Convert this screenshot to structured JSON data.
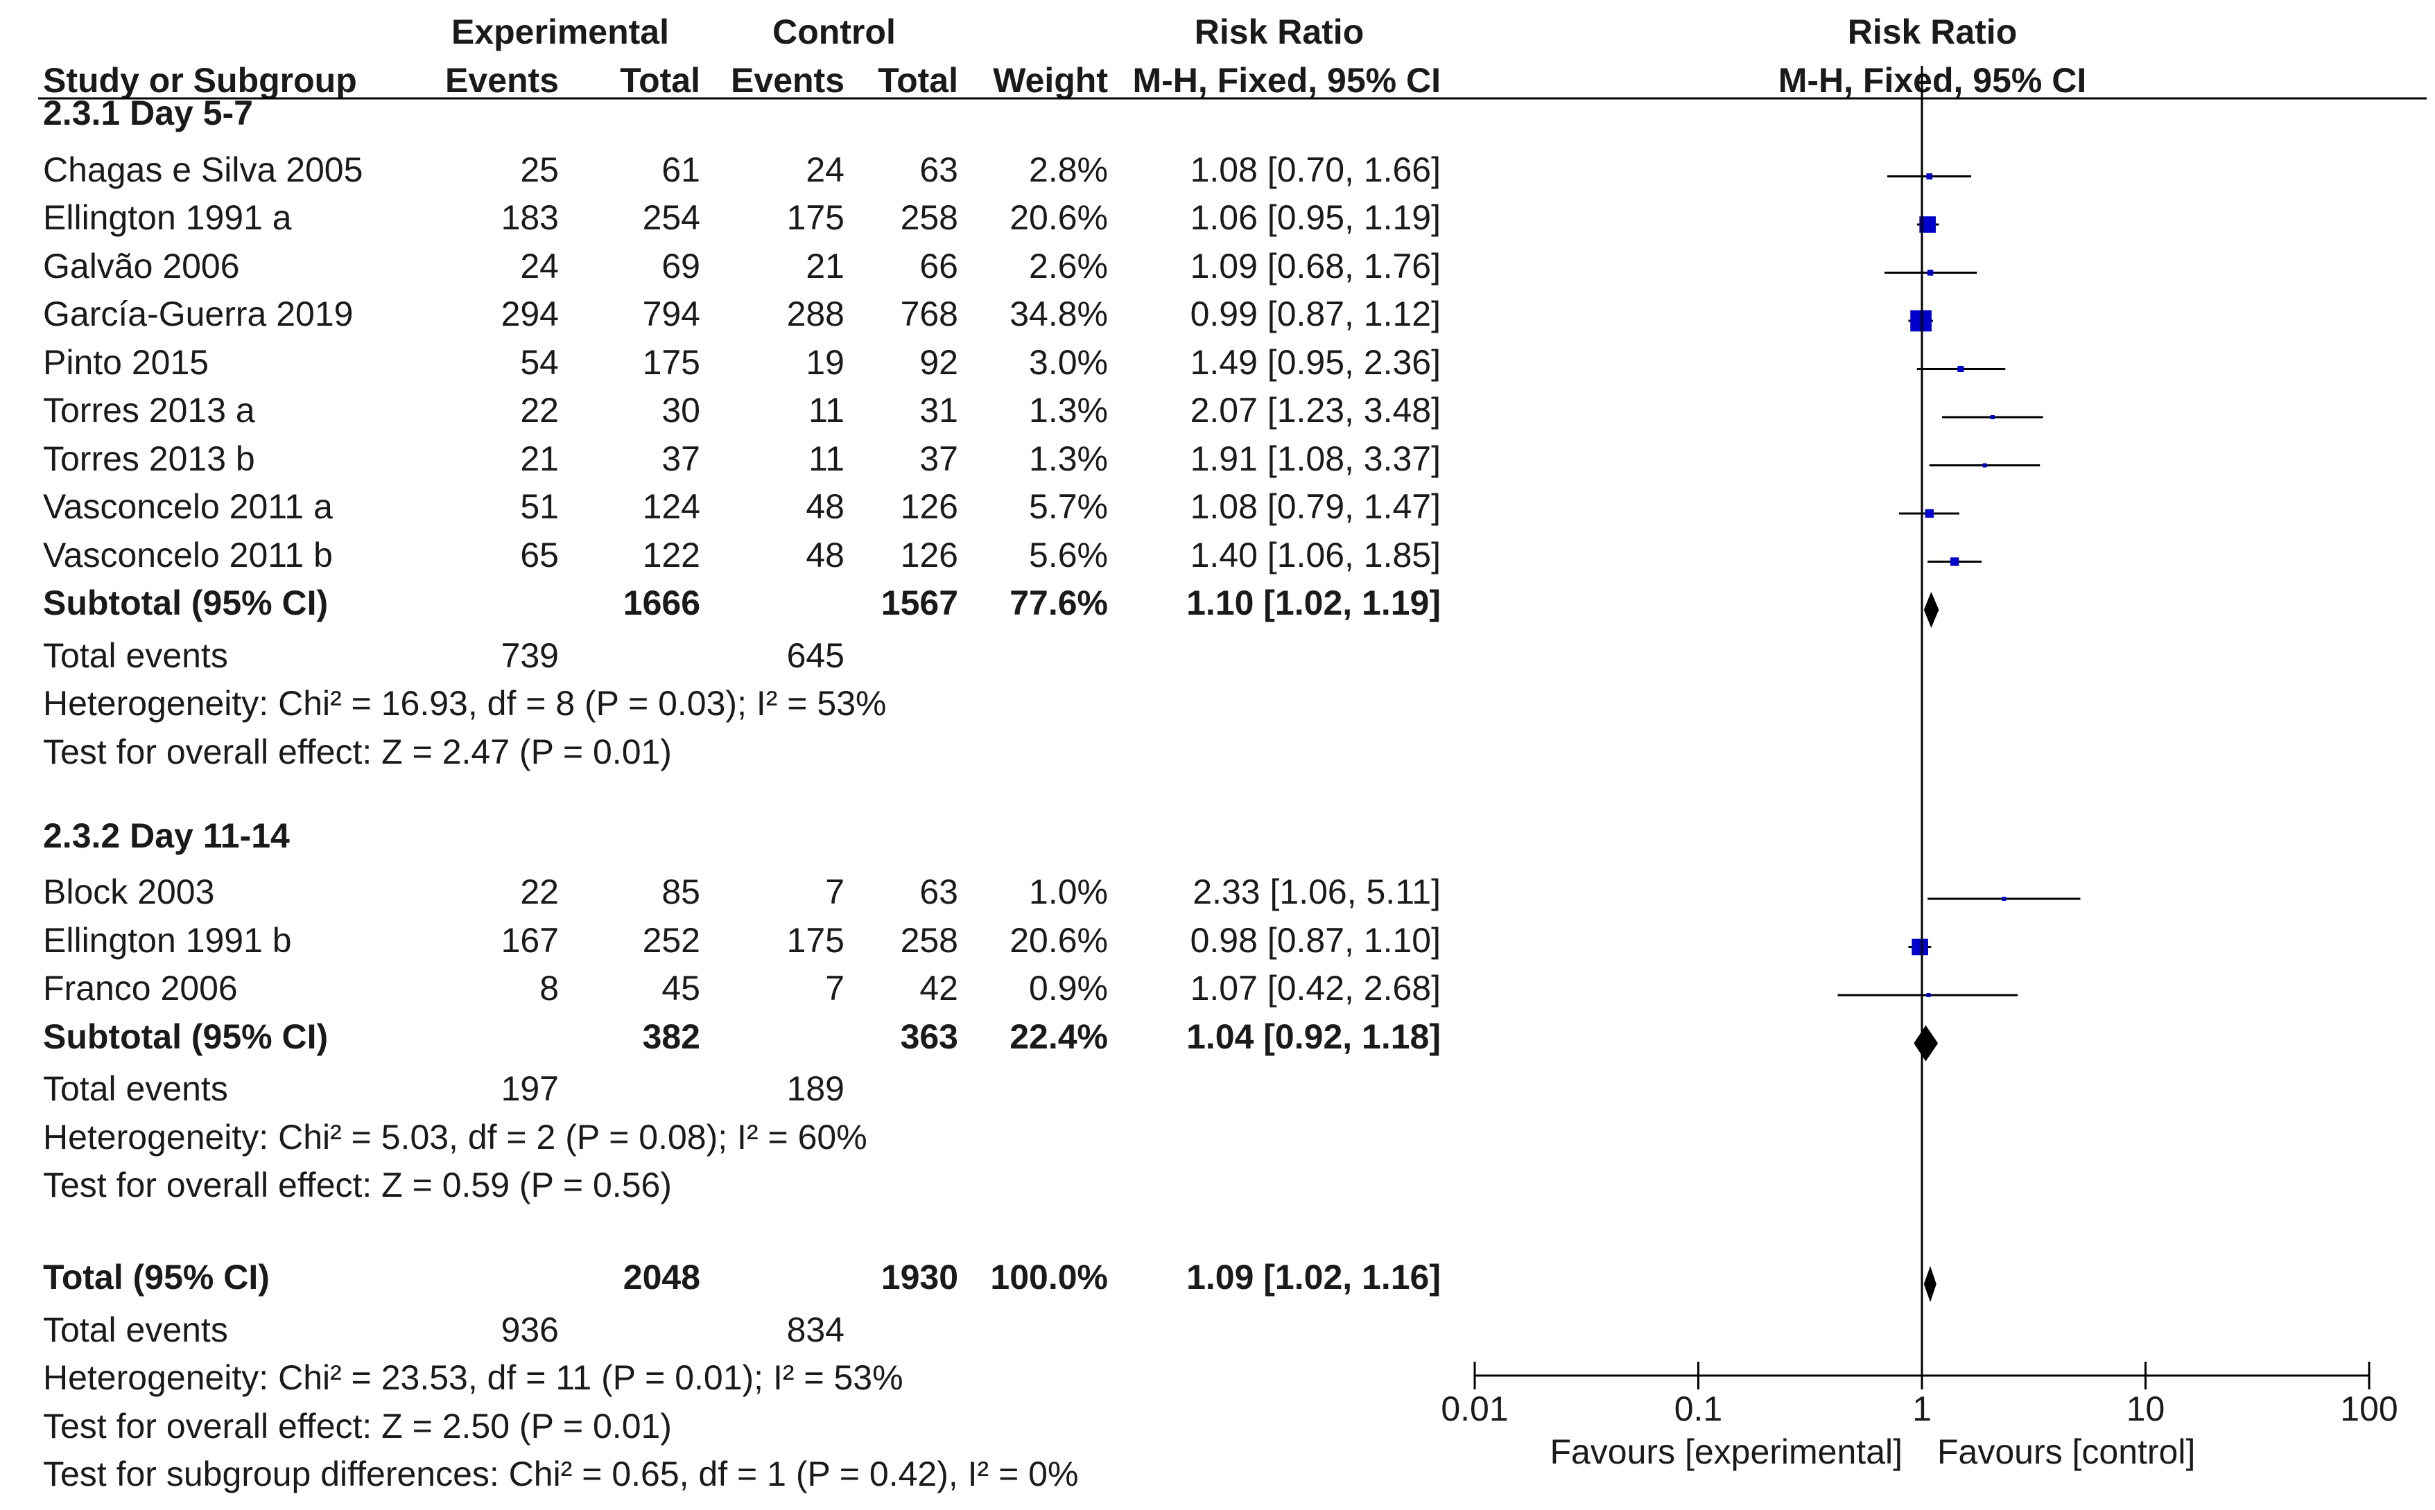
{
  "chart_data": {
    "type": "forest",
    "headers": {
      "study": "Study or Subgroup",
      "experimental": "Experimental",
      "control": "Control",
      "events": "Events",
      "total": "Total",
      "weight": "Weight",
      "rr": "Risk Ratio",
      "rr_method": "M-H, Fixed, 95% CI",
      "plot_title": "Risk Ratio",
      "plot_method": "M-H, Fixed, 95% CI"
    },
    "groups": [
      {
        "label": "2.3.1 Day 5-7",
        "studies": [
          {
            "name": "Chagas e Silva 2005",
            "exp_events": "25",
            "exp_total": "61",
            "ctl_events": "24",
            "ctl_total": "63",
            "weight": "2.8%",
            "ci_text": "1.08 [0.70, 1.66]",
            "rr": 1.08,
            "lo": 0.7,
            "hi": 1.66,
            "w": 2.8
          },
          {
            "name": "Ellington 1991 a",
            "exp_events": "183",
            "exp_total": "254",
            "ctl_events": "175",
            "ctl_total": "258",
            "weight": "20.6%",
            "ci_text": "1.06 [0.95, 1.19]",
            "rr": 1.06,
            "lo": 0.95,
            "hi": 1.19,
            "w": 20.6
          },
          {
            "name": "Galvão 2006",
            "exp_events": "24",
            "exp_total": "69",
            "ctl_events": "21",
            "ctl_total": "66",
            "weight": "2.6%",
            "ci_text": "1.09 [0.68, 1.76]",
            "rr": 1.09,
            "lo": 0.68,
            "hi": 1.76,
            "w": 2.6
          },
          {
            "name": "García-Guerra 2019",
            "exp_events": "294",
            "exp_total": "794",
            "ctl_events": "288",
            "ctl_total": "768",
            "weight": "34.8%",
            "ci_text": "0.99 [0.87, 1.12]",
            "rr": 0.99,
            "lo": 0.87,
            "hi": 1.12,
            "w": 34.8
          },
          {
            "name": "Pinto 2015",
            "exp_events": "54",
            "exp_total": "175",
            "ctl_events": "19",
            "ctl_total": "92",
            "weight": "3.0%",
            "ci_text": "1.49 [0.95, 2.36]",
            "rr": 1.49,
            "lo": 0.95,
            "hi": 2.36,
            "w": 3.0
          },
          {
            "name": "Torres 2013 a",
            "exp_events": "22",
            "exp_total": "30",
            "ctl_events": "11",
            "ctl_total": "31",
            "weight": "1.3%",
            "ci_text": "2.07 [1.23, 3.48]",
            "rr": 2.07,
            "lo": 1.23,
            "hi": 3.48,
            "w": 1.3
          },
          {
            "name": "Torres 2013 b",
            "exp_events": "21",
            "exp_total": "37",
            "ctl_events": "11",
            "ctl_total": "37",
            "weight": "1.3%",
            "ci_text": "1.91 [1.08, 3.37]",
            "rr": 1.91,
            "lo": 1.08,
            "hi": 3.37,
            "w": 1.3
          },
          {
            "name": "Vasconcelo 2011 a",
            "exp_events": "51",
            "exp_total": "124",
            "ctl_events": "48",
            "ctl_total": "126",
            "weight": "5.7%",
            "ci_text": "1.08 [0.79, 1.47]",
            "rr": 1.08,
            "lo": 0.79,
            "hi": 1.47,
            "w": 5.7
          },
          {
            "name": "Vasconcelo 2011 b",
            "exp_events": "65",
            "exp_total": "122",
            "ctl_events": "48",
            "ctl_total": "126",
            "weight": "5.6%",
            "ci_text": "1.40 [1.06, 1.85]",
            "rr": 1.4,
            "lo": 1.06,
            "hi": 1.85,
            "w": 5.6
          }
        ],
        "subtotal": {
          "label": "Subtotal (95% CI)",
          "exp_total": "1666",
          "ctl_total": "1567",
          "weight": "77.6%",
          "ci_text": "1.10 [1.02, 1.19]",
          "rr": 1.1,
          "lo": 1.02,
          "hi": 1.19
        },
        "total_events": {
          "label": "Total events",
          "exp": "739",
          "ctl": "645"
        },
        "heterogeneity": "Heterogeneity: Chi² = 16.93, df = 8 (P = 0.03); I² = 53%",
        "overall": "Test for overall effect: Z = 2.47 (P = 0.01)"
      },
      {
        "label": "2.3.2 Day 11-14",
        "studies": [
          {
            "name": "Block 2003",
            "exp_events": "22",
            "exp_total": "85",
            "ctl_events": "7",
            "ctl_total": "63",
            "weight": "1.0%",
            "ci_text": "2.33 [1.06, 5.11]",
            "rr": 2.33,
            "lo": 1.06,
            "hi": 5.11,
            "w": 1.0
          },
          {
            "name": "Ellington 1991 b",
            "exp_events": "167",
            "exp_total": "252",
            "ctl_events": "175",
            "ctl_total": "258",
            "weight": "20.6%",
            "ci_text": "0.98 [0.87, 1.10]",
            "rr": 0.98,
            "lo": 0.87,
            "hi": 1.1,
            "w": 20.6
          },
          {
            "name": "Franco 2006",
            "exp_events": "8",
            "exp_total": "45",
            "ctl_events": "7",
            "ctl_total": "42",
            "weight": "0.9%",
            "ci_text": "1.07 [0.42, 2.68]",
            "rr": 1.07,
            "lo": 0.42,
            "hi": 2.68,
            "w": 0.9
          }
        ],
        "subtotal": {
          "label": "Subtotal (95% CI)",
          "exp_total": "382",
          "ctl_total": "363",
          "weight": "22.4%",
          "ci_text": "1.04 [0.92, 1.18]",
          "rr": 1.04,
          "lo": 0.92,
          "hi": 1.18
        },
        "total_events": {
          "label": "Total events",
          "exp": "197",
          "ctl": "189"
        },
        "heterogeneity": "Heterogeneity: Chi² = 5.03, df = 2 (P = 0.08); I² = 60%",
        "overall": "Test for overall effect: Z = 0.59 (P = 0.56)"
      }
    ],
    "total": {
      "label": "Total (95% CI)",
      "exp_total": "2048",
      "ctl_total": "1930",
      "weight": "100.0%",
      "ci_text": "1.09 [1.02, 1.16]",
      "rr": 1.09,
      "lo": 1.02,
      "hi": 1.16
    },
    "total_events": {
      "label": "Total events",
      "exp": "936",
      "ctl": "834"
    },
    "total_heterogeneity": "Heterogeneity: Chi² = 23.53, df = 11 (P = 0.01); I² = 53%",
    "total_overall": "Test for overall effect: Z = 2.50 (P = 0.01)",
    "subgroup_diff": "Test for subgroup differences: Chi² = 0.65, df = 1 (P = 0.42), I² = 0%",
    "axis": {
      "scale": "log",
      "xlim": [
        0.01,
        100
      ],
      "ticks": [
        0.01,
        0.1,
        1,
        10,
        100
      ],
      "tick_labels": [
        "0.01",
        "0.1",
        "1",
        "10",
        "100"
      ],
      "favours_left": "Favours [experimental]",
      "favours_right": "Favours [control]"
    },
    "colors": {
      "marker": "#0000cc",
      "line": "#000000",
      "diamond": "#000000"
    }
  }
}
